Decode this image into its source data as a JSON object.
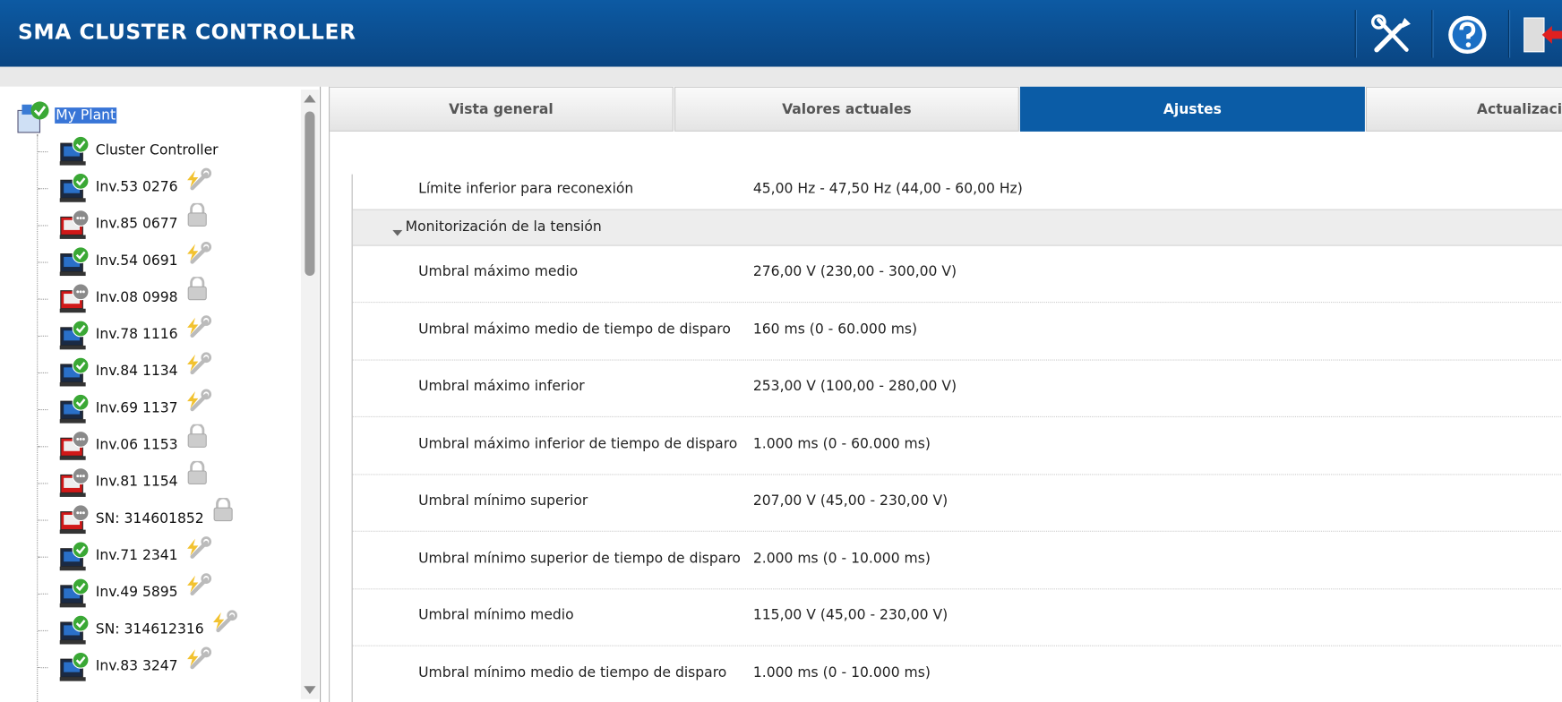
{
  "header": {
    "title": "SMA CLUSTER CONTROLLER"
  },
  "tree": {
    "root": "My Plant",
    "nodes": [
      {
        "label": "Cluster Controller",
        "status": "ok",
        "badge": "none"
      },
      {
        "label": "Inv.53 0276",
        "status": "ok",
        "badge": "wrench"
      },
      {
        "label": "Inv.85 0677",
        "status": "offline",
        "badge": "lock"
      },
      {
        "label": "Inv.54 0691",
        "status": "ok",
        "badge": "wrench"
      },
      {
        "label": "Inv.08 0998",
        "status": "offline",
        "badge": "lock"
      },
      {
        "label": "Inv.78 1116",
        "status": "ok",
        "badge": "wrench"
      },
      {
        "label": "Inv.84 1134",
        "status": "ok",
        "badge": "wrench"
      },
      {
        "label": "Inv.69 1137",
        "status": "ok",
        "badge": "wrench"
      },
      {
        "label": "Inv.06 1153",
        "status": "offline",
        "badge": "lock"
      },
      {
        "label": "Inv.81 1154",
        "status": "offline",
        "badge": "lock"
      },
      {
        "label": "SN: 314601852",
        "status": "offline",
        "badge": "lock"
      },
      {
        "label": "Inv.71 2341",
        "status": "ok",
        "badge": "wrench"
      },
      {
        "label": "Inv.49 5895",
        "status": "ok",
        "badge": "wrench"
      },
      {
        "label": "SN: 314612316",
        "status": "ok",
        "badge": "wrench"
      },
      {
        "label": "Inv.83 3247",
        "status": "ok",
        "badge": "wrench"
      }
    ]
  },
  "tabs": {
    "items": [
      "Vista general",
      "Valores actuales",
      "Ajustes",
      "Actualizaciones"
    ],
    "active": 2
  },
  "settings": {
    "first_row": {
      "label": "Límite inferior para reconexión",
      "value": "45,00 Hz - 47,50 Hz (44,00 - 60,00 Hz)"
    },
    "section": "Monitorización de la tensión",
    "rows": [
      {
        "label": "Umbral máximo medio",
        "value": "276,00 V (230,00 - 300,00 V)"
      },
      {
        "label": "Umbral máximo medio de tiempo de disparo",
        "value": "160 ms (0 - 60.000 ms)"
      },
      {
        "label": "Umbral máximo inferior",
        "value": "253,00 V (100,00 - 280,00 V)"
      },
      {
        "label": "Umbral máximo inferior de tiempo de disparo",
        "value": "1.000 ms (0 - 60.000 ms)"
      },
      {
        "label": "Umbral mínimo superior",
        "value": "207,00 V (45,00 - 230,00 V)"
      },
      {
        "label": "Umbral mínimo superior de tiempo de disparo",
        "value": "2.000 ms (0 - 10.000 ms)"
      },
      {
        "label": "Umbral mínimo medio",
        "value": "115,00 V (45,00 - 230,00 V)"
      },
      {
        "label": "Umbral mínimo medio de tiempo de disparo",
        "value": "1.000 ms (0 - 10.000 ms)"
      }
    ]
  }
}
